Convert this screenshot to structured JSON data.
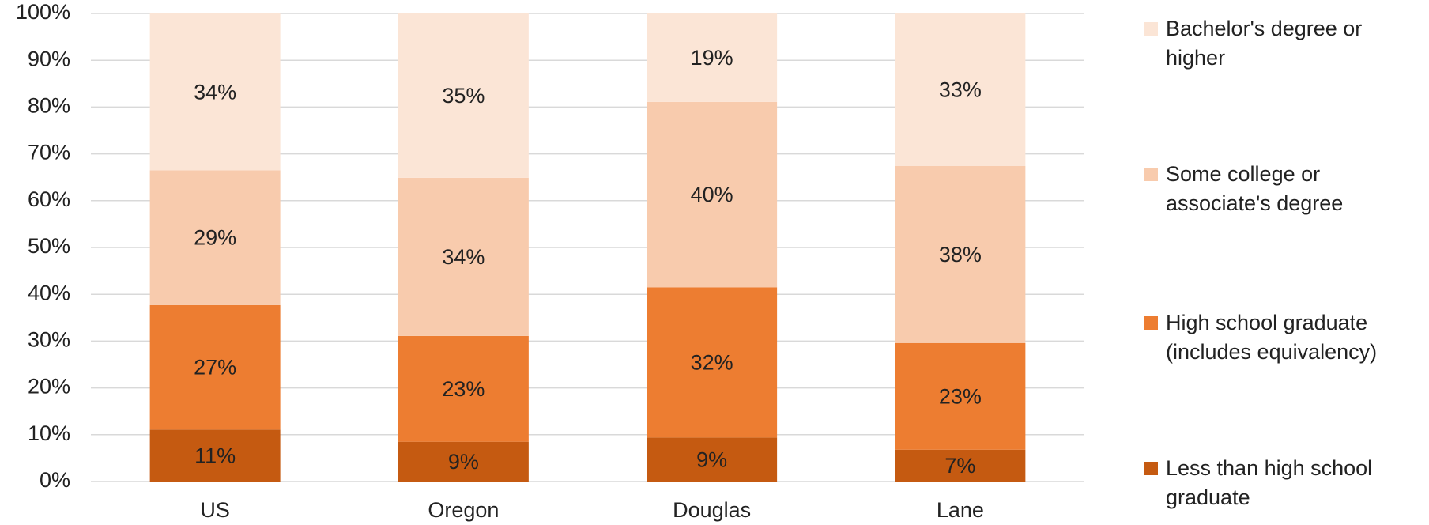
{
  "chart_data": {
    "type": "stacked_bar",
    "categories": [
      "US",
      "Oregon",
      "Douglas",
      "Lane"
    ],
    "series": [
      {
        "name": "Less than high school graduate",
        "color": "#c55a11",
        "values": [
          11.1,
          8.5,
          9.4,
          6.8
        ],
        "value_labels": [
          "11%",
          "9%",
          "9%",
          "7%"
        ]
      },
      {
        "name": "High school graduate (includes equivalency)",
        "color": "#ed7d31",
        "values": [
          26.6,
          22.6,
          32.1,
          22.8
        ],
        "value_labels": [
          "27%",
          "23%",
          "32%",
          "23%"
        ]
      },
      {
        "name": "Some college or associate's degree",
        "color": "#f8cbad",
        "values": [
          28.8,
          33.8,
          39.6,
          37.8
        ],
        "value_labels": [
          "29%",
          "34%",
          "40%",
          "38%"
        ]
      },
      {
        "name": "Bachelor's degree or higher",
        "color": "#fbe5d6",
        "values": [
          33.5,
          35.1,
          18.9,
          32.6
        ],
        "value_labels": [
          "34%",
          "35%",
          "19%",
          "33%"
        ]
      }
    ],
    "ylim": [
      0,
      100
    ],
    "yticks": [
      {
        "value": 0,
        "label": "0%"
      },
      {
        "value": 10,
        "label": "10%"
      },
      {
        "value": 20,
        "label": "20%"
      },
      {
        "value": 30,
        "label": "30%"
      },
      {
        "value": 40,
        "label": "40%"
      },
      {
        "value": 50,
        "label": "50%"
      },
      {
        "value": 60,
        "label": "60%"
      },
      {
        "value": 70,
        "label": "70%"
      },
      {
        "value": 80,
        "label": "80%"
      },
      {
        "value": 90,
        "label": "90%"
      },
      {
        "value": 100,
        "label": "100%"
      }
    ],
    "grid": true,
    "legend": "right"
  }
}
